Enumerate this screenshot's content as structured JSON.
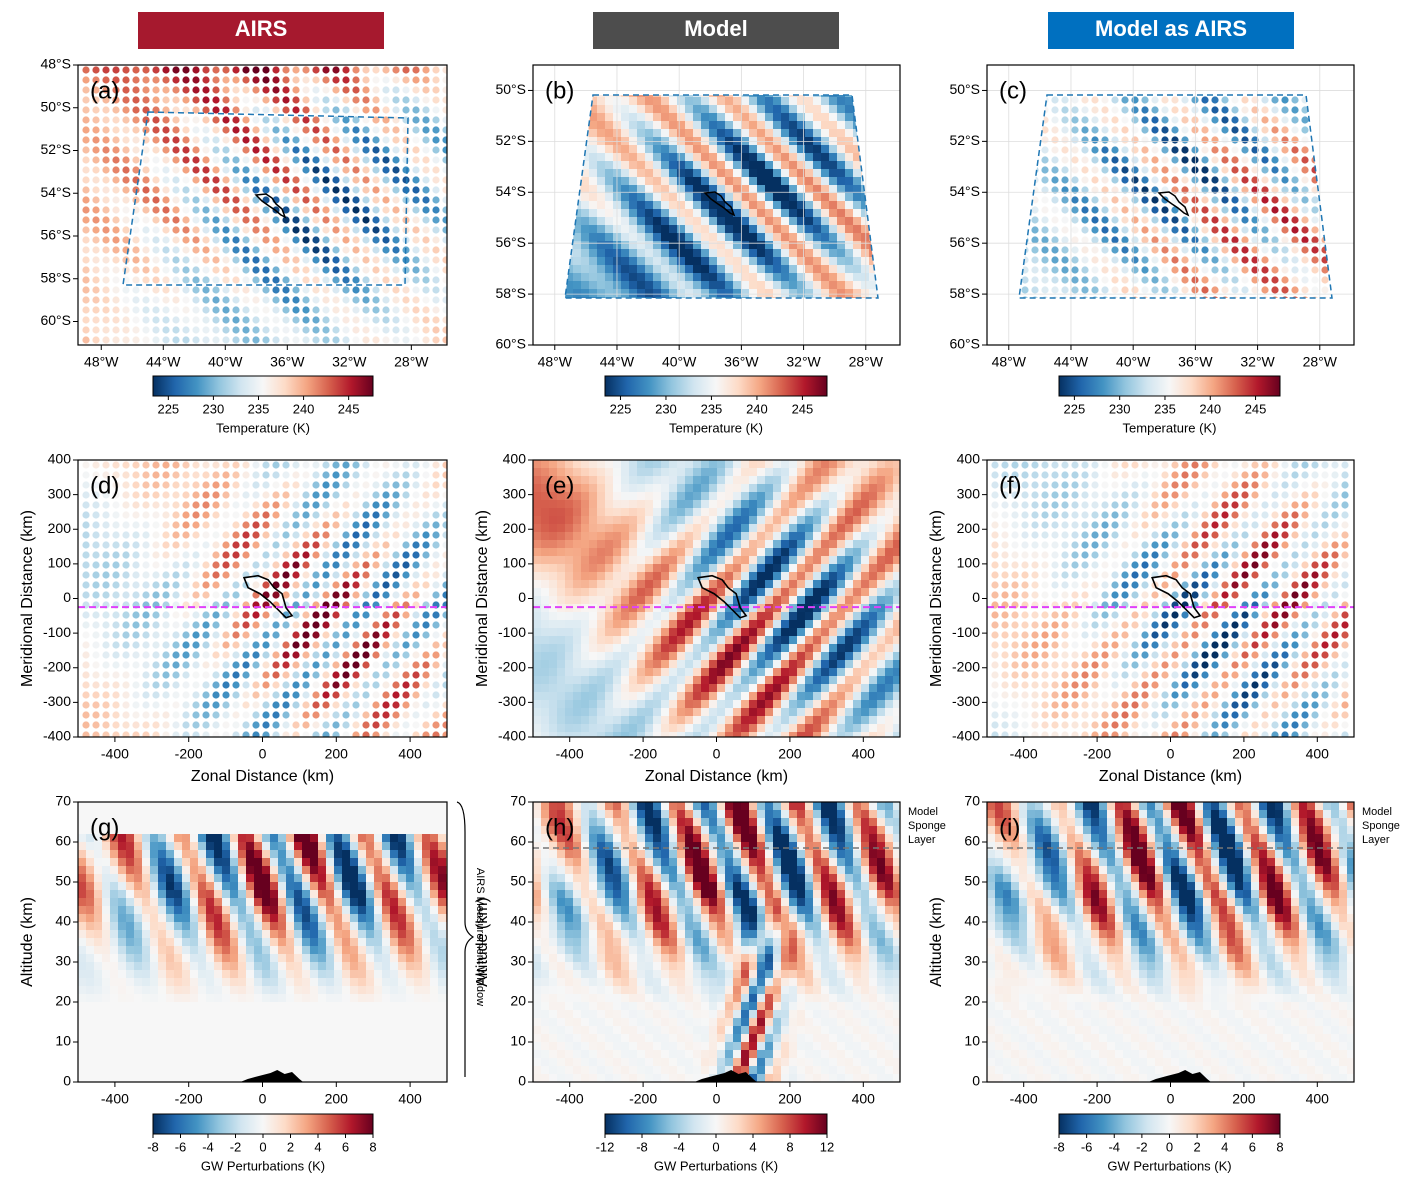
{
  "columns": [
    "AIRS",
    "Model",
    "Model as AIRS"
  ],
  "chart_data": [
    {
      "type": "heatmap",
      "panel_label": "(a)",
      "grid": false,
      "xlim": [
        -49.5,
        -25.7
      ],
      "ylim": [
        -61.1,
        -48
      ],
      "xticks": [
        {
          "value": -48,
          "label": "48°W"
        },
        {
          "value": -44,
          "label": "44°W"
        },
        {
          "value": -40,
          "label": "40°W"
        },
        {
          "value": -36,
          "label": "36°W"
        },
        {
          "value": -32,
          "label": "32°W"
        },
        {
          "value": -28,
          "label": "28°W"
        }
      ],
      "yticks": [
        {
          "value": -60,
          "label": "60°S"
        },
        {
          "value": -58,
          "label": "58°S"
        },
        {
          "value": -56,
          "label": "56°S"
        },
        {
          "value": -54,
          "label": "54°S"
        },
        {
          "value": -52,
          "label": "52°S"
        },
        {
          "value": -50,
          "label": "50°S"
        },
        {
          "value": -48,
          "label": "48°S"
        }
      ],
      "colorbar": {
        "label": "Temperature (K)",
        "lim": [
          223.3,
          247.7
        ],
        "ticks": [
          225,
          230,
          235,
          240,
          245
        ]
      }
    },
    {
      "type": "heatmap",
      "panel_label": "(b)",
      "grid": true,
      "xlim": [
        -49.4,
        -25.8
      ],
      "ylim": [
        -60,
        -49
      ],
      "xticks": [
        {
          "value": -48,
          "label": "48°W"
        },
        {
          "value": -44,
          "label": "44°W"
        },
        {
          "value": -40,
          "label": "40°W"
        },
        {
          "value": -36,
          "label": "36°W"
        },
        {
          "value": -32,
          "label": "32°W"
        },
        {
          "value": -28,
          "label": "28°W"
        }
      ],
      "yticks": [
        {
          "value": -60,
          "label": "60°S"
        },
        {
          "value": -58,
          "label": "58°S"
        },
        {
          "value": -56,
          "label": "56°S"
        },
        {
          "value": -54,
          "label": "54°S"
        },
        {
          "value": -52,
          "label": "52°S"
        },
        {
          "value": -50,
          "label": "50°S"
        }
      ],
      "colorbar": {
        "label": "Temperature (K)",
        "lim": [
          223.3,
          247.7
        ],
        "ticks": [
          225,
          230,
          235,
          240,
          245
        ]
      }
    },
    {
      "type": "heatmap",
      "panel_label": "(c)",
      "grid": true,
      "xlim": [
        -49.4,
        -25.8
      ],
      "ylim": [
        -60,
        -49
      ],
      "xticks": [
        {
          "value": -48,
          "label": "48°W"
        },
        {
          "value": -44,
          "label": "44°W"
        },
        {
          "value": -40,
          "label": "40°W"
        },
        {
          "value": -36,
          "label": "36°W"
        },
        {
          "value": -32,
          "label": "32°W"
        },
        {
          "value": -28,
          "label": "28°W"
        }
      ],
      "yticks": [
        {
          "value": -60,
          "label": "60°S"
        },
        {
          "value": -58,
          "label": "58°S"
        },
        {
          "value": -56,
          "label": "56°S"
        },
        {
          "value": -54,
          "label": "54°S"
        },
        {
          "value": -52,
          "label": "52°S"
        },
        {
          "value": -50,
          "label": "50°S"
        }
      ],
      "colorbar": {
        "label": "Temperature (K)",
        "lim": [
          223.3,
          247.7
        ],
        "ticks": [
          225,
          230,
          235,
          240,
          245
        ]
      }
    },
    {
      "type": "heatmap",
      "panel_label": "(d)",
      "grid": false,
      "xlim": [
        -500,
        500
      ],
      "ylim": [
        -400,
        400
      ],
      "xticks": [
        -400,
        -200,
        0,
        200,
        400
      ],
      "yticks": [
        -400,
        -300,
        -200,
        -100,
        0,
        100,
        200,
        300,
        400
      ],
      "x_label": "Zonal Distance (km)",
      "y_label": "Meridional Distance (km)",
      "reference_line": -25
    },
    {
      "type": "heatmap",
      "panel_label": "(e)",
      "grid": false,
      "xlim": [
        -500,
        500
      ],
      "ylim": [
        -400,
        400
      ],
      "xticks": [
        -400,
        -200,
        0,
        200,
        400
      ],
      "yticks": [
        -400,
        -300,
        -200,
        -100,
        0,
        100,
        200,
        300,
        400
      ],
      "x_label": "Zonal Distance (km)",
      "y_label": "Meridional Distance (km)",
      "reference_line": -25
    },
    {
      "type": "heatmap",
      "panel_label": "(f)",
      "grid": false,
      "xlim": [
        -500,
        500
      ],
      "ylim": [
        -400,
        400
      ],
      "xticks": [
        -400,
        -200,
        0,
        200,
        400
      ],
      "yticks": [
        -400,
        -300,
        -200,
        -100,
        0,
        100,
        200,
        300,
        400
      ],
      "x_label": "Zonal Distance (km)",
      "y_label": "Meridional Distance (km)",
      "reference_line": -25
    },
    {
      "type": "heatmap",
      "panel_label": "(g)",
      "grid": false,
      "xlim": [
        -500,
        500
      ],
      "ylim": [
        0,
        70
      ],
      "xticks": [
        -400,
        -200,
        0,
        200,
        400
      ],
      "yticks": [
        0,
        10,
        20,
        30,
        40,
        50,
        60,
        70
      ],
      "y_label": "Altitude (km)",
      "annotation": "AIRS Measurement Window",
      "colorbar": {
        "label": "GW Perturbations (K)",
        "lim": [
          -8,
          8
        ],
        "ticks": [
          -8,
          -6,
          -4,
          -2,
          0,
          2,
          4,
          6,
          8
        ]
      }
    },
    {
      "type": "heatmap",
      "panel_label": "(h)",
      "grid": false,
      "xlim": [
        -500,
        500
      ],
      "ylim": [
        0,
        70
      ],
      "xticks": [
        -400,
        -200,
        0,
        200,
        400
      ],
      "yticks": [
        0,
        10,
        20,
        30,
        40,
        50,
        60,
        70
      ],
      "y_label": "Altitude (km)",
      "sponge_layer": 58.5,
      "annotation": [
        "Model",
        "Sponge",
        "Layer"
      ],
      "colorbar": {
        "label": "GW Perturbations (K)",
        "lim": [
          -12,
          12
        ],
        "ticks": [
          -12,
          -8,
          -4,
          0,
          4,
          8,
          12
        ]
      }
    },
    {
      "type": "heatmap",
      "panel_label": "(i)",
      "grid": false,
      "xlim": [
        -500,
        500
      ],
      "ylim": [
        0,
        70
      ],
      "xticks": [
        -400,
        -200,
        0,
        200,
        400
      ],
      "yticks": [
        0,
        10,
        20,
        30,
        40,
        50,
        60,
        70
      ],
      "y_label": "Altitude (km)",
      "sponge_layer": 58.5,
      "annotation": [
        "Model",
        "Sponge",
        "Layer"
      ],
      "colorbar": {
        "label": "GW Perturbations (K)",
        "lim": [
          -8,
          8
        ],
        "ticks": [
          -8,
          -6,
          -4,
          -2,
          0,
          2,
          4,
          6,
          8
        ]
      }
    }
  ]
}
